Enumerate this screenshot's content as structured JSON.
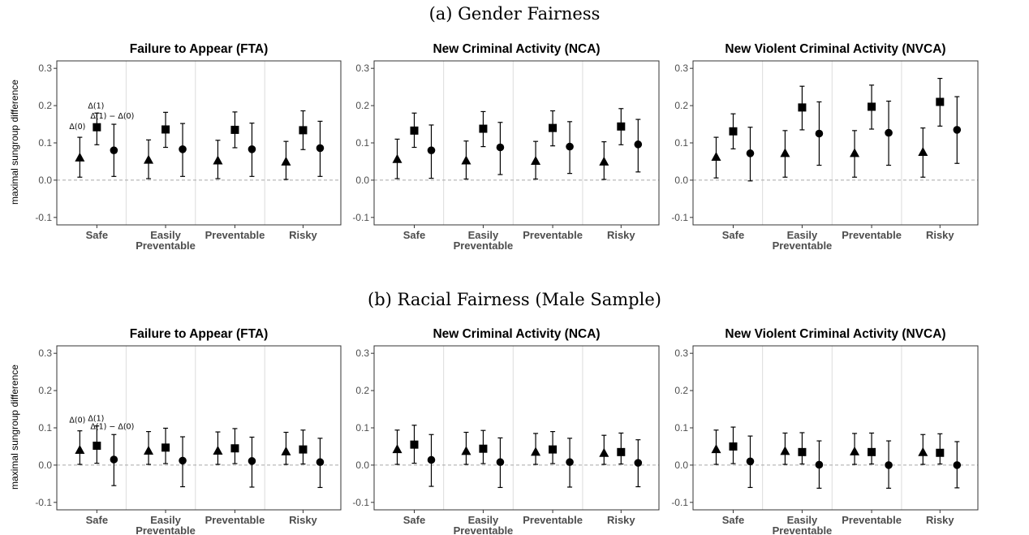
{
  "figure": {
    "ylabel": "maximal sungroup difference",
    "sections": [
      {
        "title": "(a) Gender Fairness",
        "panels": [
          {
            "title": "Failure to Appear (FTA)"
          },
          {
            "title": "New Criminal Activity (NCA)"
          },
          {
            "title": "New Violent Criminal Activity (NVCA)"
          }
        ]
      },
      {
        "title": "(b) Racial Fairness (Male Sample)",
        "panels": [
          {
            "title": "Failure to Appear (FTA)"
          },
          {
            "title": "New Criminal Activity (NCA)"
          },
          {
            "title": "New Violent Criminal Activity (NVCA)"
          }
        ]
      }
    ]
  },
  "chart_data": [
    {
      "type": "scatter",
      "section": "(a) Gender Fairness",
      "title": "Failure to Appear (FTA)",
      "ylabel": "maximal sungroup difference",
      "ylim": [
        -0.12,
        0.32
      ],
      "yticks": [
        "-0.1",
        "0.0",
        "0.1",
        "0.2",
        "0.3"
      ],
      "categories": [
        "Safe",
        "Easily Preventable",
        "Preventable",
        "Risky"
      ],
      "annotations": [
        "Δ(0)",
        "Δ(1)",
        "Δ(1) − Δ(0)"
      ],
      "series": [
        {
          "marker": "triangle",
          "values": [
            0.06,
            0.054,
            0.052,
            0.049
          ],
          "lower": [
            0.008,
            0.004,
            0.004,
            0.002
          ],
          "upper": [
            0.115,
            0.108,
            0.107,
            0.104
          ]
        },
        {
          "marker": "square",
          "values": [
            0.142,
            0.136,
            0.135,
            0.134
          ],
          "lower": [
            0.095,
            0.088,
            0.087,
            0.082
          ],
          "upper": [
            0.18,
            0.182,
            0.183,
            0.186
          ]
        },
        {
          "marker": "circle",
          "values": [
            0.08,
            0.083,
            0.083,
            0.086
          ],
          "lower": [
            0.01,
            0.01,
            0.01,
            0.01
          ],
          "upper": [
            0.15,
            0.152,
            0.153,
            0.158
          ]
        }
      ]
    },
    {
      "type": "scatter",
      "section": "(a) Gender Fairness",
      "title": "New Criminal Activity (NCA)",
      "ylim": [
        -0.12,
        0.32
      ],
      "yticks": [
        "-0.1",
        "0.0",
        "0.1",
        "0.2",
        "0.3"
      ],
      "categories": [
        "Safe",
        "Easily Preventable",
        "Preventable",
        "Risky"
      ],
      "series": [
        {
          "marker": "triangle",
          "values": [
            0.056,
            0.052,
            0.051,
            0.049
          ],
          "lower": [
            0.004,
            0.003,
            0.003,
            0.002
          ],
          "upper": [
            0.11,
            0.105,
            0.104,
            0.103
          ]
        },
        {
          "marker": "square",
          "values": [
            0.133,
            0.138,
            0.14,
            0.144
          ],
          "lower": [
            0.088,
            0.09,
            0.092,
            0.095
          ],
          "upper": [
            0.18,
            0.184,
            0.186,
            0.192
          ]
        },
        {
          "marker": "circle",
          "values": [
            0.08,
            0.088,
            0.09,
            0.096
          ],
          "lower": [
            0.005,
            0.015,
            0.018,
            0.022
          ],
          "upper": [
            0.148,
            0.155,
            0.157,
            0.163
          ]
        }
      ]
    },
    {
      "type": "scatter",
      "section": "(a) Gender Fairness",
      "title": "New Violent Criminal Activity (NVCA)",
      "ylim": [
        -0.12,
        0.32
      ],
      "yticks": [
        "-0.1",
        "0.0",
        "0.1",
        "0.2",
        "0.3"
      ],
      "categories": [
        "Safe",
        "Easily Preventable",
        "Preventable",
        "Risky"
      ],
      "series": [
        {
          "marker": "triangle",
          "values": [
            0.062,
            0.072,
            0.072,
            0.075
          ],
          "lower": [
            0.006,
            0.008,
            0.008,
            0.008
          ],
          "upper": [
            0.115,
            0.133,
            0.133,
            0.14
          ]
        },
        {
          "marker": "square",
          "values": [
            0.131,
            0.195,
            0.197,
            0.21
          ],
          "lower": [
            0.084,
            0.135,
            0.137,
            0.145
          ],
          "upper": [
            0.178,
            0.252,
            0.255,
            0.273
          ]
        },
        {
          "marker": "circle",
          "values": [
            0.072,
            0.125,
            0.127,
            0.135
          ],
          "lower": [
            -0.002,
            0.04,
            0.04,
            0.045
          ],
          "upper": [
            0.142,
            0.21,
            0.212,
            0.224
          ]
        }
      ]
    },
    {
      "type": "scatter",
      "section": "(b) Racial Fairness (Male Sample)",
      "title": "Failure to Appear (FTA)",
      "ylabel": "maximal sungroup difference",
      "ylim": [
        -0.12,
        0.32
      ],
      "yticks": [
        "-0.1",
        "0.0",
        "0.1",
        "0.2",
        "0.3"
      ],
      "categories": [
        "Safe",
        "Easily Preventable",
        "Preventable",
        "Risky"
      ],
      "annotations": [
        "Δ(0)",
        "Δ(1)",
        "Δ(1) − Δ(0)"
      ],
      "series": [
        {
          "marker": "triangle",
          "values": [
            0.04,
            0.038,
            0.038,
            0.036
          ],
          "lower": [
            0.002,
            0.002,
            0.002,
            0.002
          ],
          "upper": [
            0.092,
            0.09,
            0.089,
            0.088
          ]
        },
        {
          "marker": "square",
          "values": [
            0.052,
            0.047,
            0.045,
            0.042
          ],
          "lower": [
            0.005,
            0.004,
            0.004,
            0.003
          ],
          "upper": [
            0.105,
            0.099,
            0.098,
            0.094
          ]
        },
        {
          "marker": "circle",
          "values": [
            0.015,
            0.012,
            0.011,
            0.008
          ],
          "lower": [
            -0.055,
            -0.058,
            -0.059,
            -0.06
          ],
          "upper": [
            0.082,
            0.076,
            0.075,
            0.072
          ]
        }
      ]
    },
    {
      "type": "scatter",
      "section": "(b) Racial Fairness (Male Sample)",
      "title": "New Criminal Activity (NCA)",
      "ylim": [
        -0.12,
        0.32
      ],
      "yticks": [
        "-0.1",
        "0.0",
        "0.1",
        "0.2",
        "0.3"
      ],
      "categories": [
        "Safe",
        "Easily Preventable",
        "Preventable",
        "Risky"
      ],
      "series": [
        {
          "marker": "triangle",
          "values": [
            0.042,
            0.037,
            0.035,
            0.032
          ],
          "lower": [
            0.002,
            0.002,
            0.002,
            0.002
          ],
          "upper": [
            0.094,
            0.088,
            0.085,
            0.08
          ]
        },
        {
          "marker": "square",
          "values": [
            0.055,
            0.044,
            0.042,
            0.035
          ],
          "lower": [
            0.005,
            0.004,
            0.004,
            0.003
          ],
          "upper": [
            0.107,
            0.093,
            0.09,
            0.086
          ]
        },
        {
          "marker": "circle",
          "values": [
            0.014,
            0.008,
            0.008,
            0.006
          ],
          "lower": [
            -0.057,
            -0.06,
            -0.059,
            -0.058
          ],
          "upper": [
            0.082,
            0.073,
            0.072,
            0.068
          ]
        }
      ]
    },
    {
      "type": "scatter",
      "section": "(b) Racial Fairness (Male Sample)",
      "title": "New Violent Criminal Activity (NVCA)",
      "ylim": [
        -0.12,
        0.32
      ],
      "yticks": [
        "-0.1",
        "0.0",
        "0.1",
        "0.2",
        "0.3"
      ],
      "categories": [
        "Safe",
        "Easily Preventable",
        "Preventable",
        "Risky"
      ],
      "series": [
        {
          "marker": "triangle",
          "values": [
            0.042,
            0.037,
            0.036,
            0.034
          ],
          "lower": [
            0.002,
            0.002,
            0.002,
            0.002
          ],
          "upper": [
            0.094,
            0.086,
            0.085,
            0.082
          ]
        },
        {
          "marker": "square",
          "values": [
            0.05,
            0.035,
            0.035,
            0.033
          ],
          "lower": [
            0.004,
            0.003,
            0.003,
            0.003
          ],
          "upper": [
            0.102,
            0.087,
            0.086,
            0.084
          ]
        },
        {
          "marker": "circle",
          "values": [
            0.01,
            0.001,
            0.0,
            0.0
          ],
          "lower": [
            -0.06,
            -0.062,
            -0.062,
            -0.061
          ],
          "upper": [
            0.078,
            0.065,
            0.065,
            0.063
          ]
        }
      ]
    }
  ]
}
